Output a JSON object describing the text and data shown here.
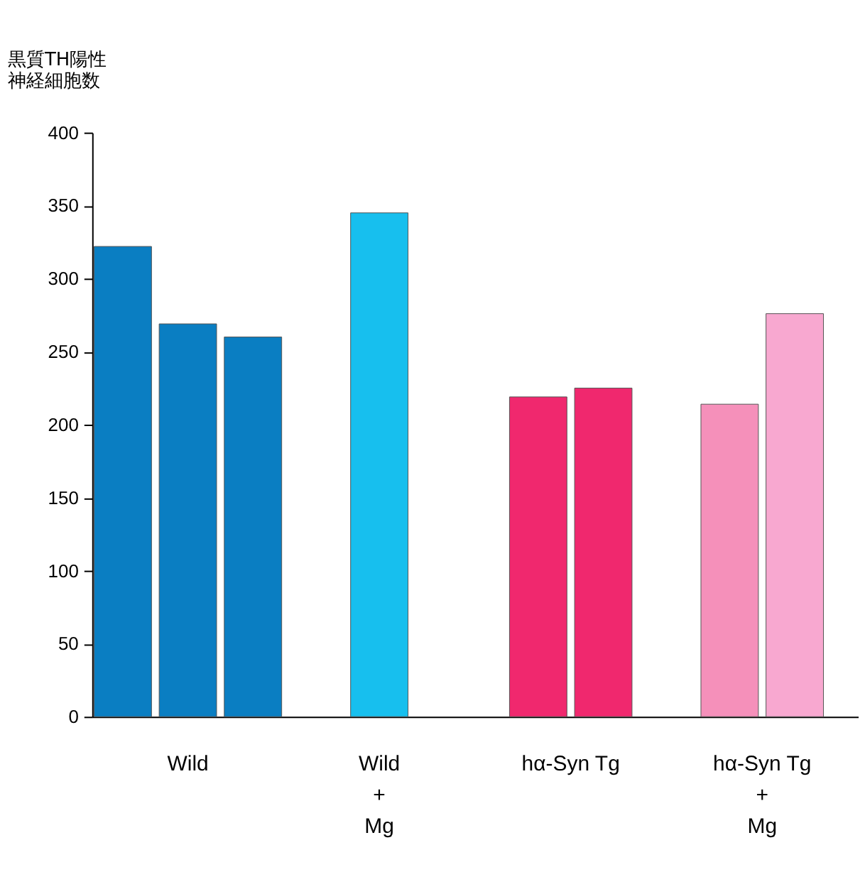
{
  "chart_data": {
    "type": "bar",
    "ylabel": "黒質TH陽性神経細胞数",
    "categories": [
      "Wild",
      "Wild\n+\nMg",
      "hα-Syn Tg",
      "hα-Syn Tg\n+\nMg"
    ],
    "series": [
      {
        "values": [
          322,
          345,
          219,
          214
        ],
        "colors": [
          "#0a7ec2",
          "#17bfee",
          "#f0286e",
          "#f590ba"
        ]
      },
      {
        "values": [
          269,
          null,
          225,
          276
        ],
        "colors": [
          "#0a7ec2",
          null,
          "#f0286e",
          "#f8a8d0"
        ]
      },
      {
        "values": [
          260,
          null,
          null,
          null
        ],
        "colors": [
          "#0a7ec2",
          null,
          null,
          null
        ]
      }
    ],
    "ylim": [
      0,
      400
    ],
    "yticks": [
      0,
      50,
      100,
      150,
      200,
      250,
      300,
      350,
      400
    ],
    "grid": false
  }
}
